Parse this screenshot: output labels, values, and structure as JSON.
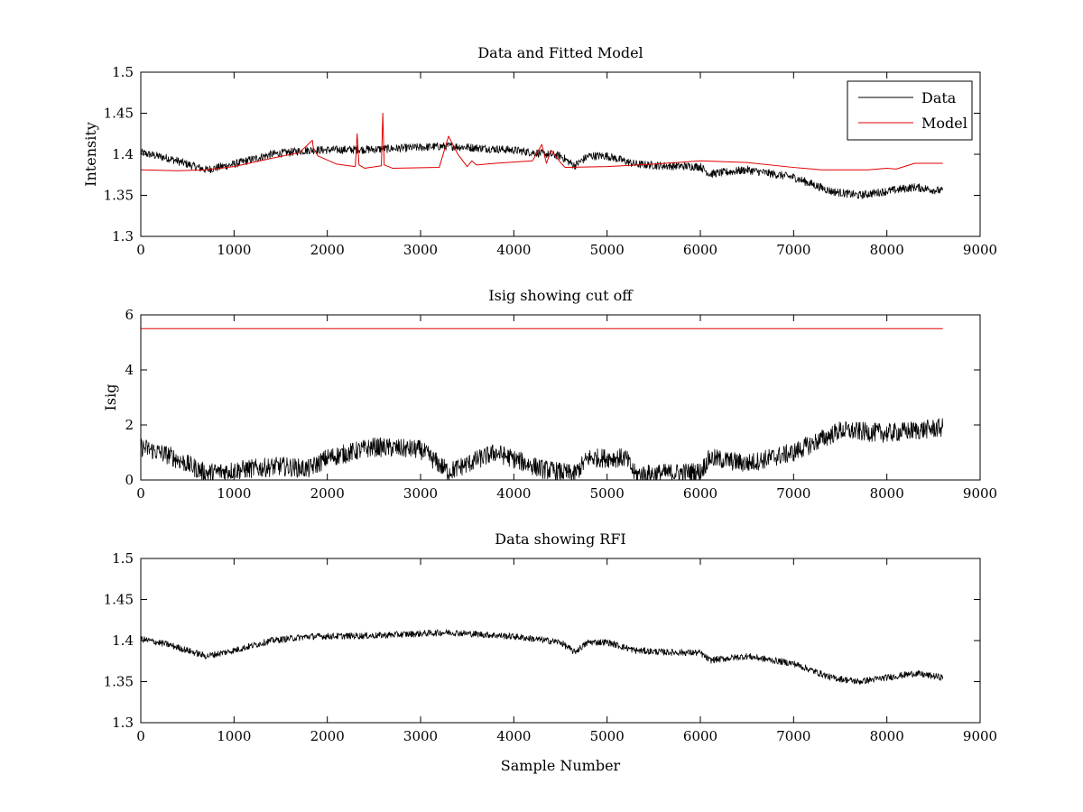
{
  "chart_data": [
    {
      "type": "line",
      "title": "Data and Fitted Model",
      "xlabel": "",
      "ylabel": "Intensity",
      "xlim": [
        0,
        9000
      ],
      "ylim": [
        1.3,
        1.5
      ],
      "xticks": [
        "0",
        "1000",
        "2000",
        "3000",
        "4000",
        "5000",
        "6000",
        "7000",
        "8000",
        "9000"
      ],
      "yticks": [
        "1.3",
        "1.35",
        "1.4",
        "1.45",
        "1.5"
      ],
      "legend": {
        "position": "top-right",
        "entries": [
          "Data",
          "Model"
        ]
      },
      "series": [
        {
          "name": "Data",
          "color": "#000000",
          "noise": 0.005,
          "x": [
            0,
            300,
            700,
            1000,
            1400,
            1800,
            2500,
            3300,
            4000,
            4500,
            4650,
            4800,
            5000,
            5300,
            5600,
            6000,
            6100,
            6500,
            7000,
            7400,
            7700,
            8000,
            8300,
            8600
          ],
          "y": [
            1.402,
            1.395,
            1.381,
            1.388,
            1.4,
            1.405,
            1.406,
            1.41,
            1.405,
            1.398,
            1.386,
            1.398,
            1.398,
            1.388,
            1.386,
            1.385,
            1.376,
            1.381,
            1.372,
            1.355,
            1.35,
            1.355,
            1.36,
            1.355
          ]
        },
        {
          "name": "Model",
          "color": "#e00000",
          "noise": 0,
          "x": [
            0,
            400,
            700,
            1000,
            1400,
            1700,
            1840,
            1850,
            1900,
            2100,
            2300,
            2320,
            2340,
            2400,
            2580,
            2595,
            2610,
            2700,
            3200,
            3300,
            3400,
            3500,
            3550,
            3600,
            3800,
            4200,
            4300,
            4350,
            4400,
            4500,
            4550,
            5000,
            5500,
            6000,
            6500,
            7000,
            7300,
            7800,
            8000,
            8100,
            8300,
            8600
          ],
          "y": [
            1.381,
            1.38,
            1.381,
            1.385,
            1.395,
            1.402,
            1.417,
            1.408,
            1.398,
            1.388,
            1.385,
            1.425,
            1.387,
            1.383,
            1.386,
            1.45,
            1.387,
            1.383,
            1.384,
            1.422,
            1.4,
            1.385,
            1.392,
            1.387,
            1.389,
            1.392,
            1.412,
            1.389,
            1.405,
            1.39,
            1.384,
            1.385,
            1.388,
            1.392,
            1.39,
            1.384,
            1.381,
            1.381,
            1.383,
            1.382,
            1.389,
            1.389
          ]
        }
      ]
    },
    {
      "type": "line",
      "title": "Isig showing cut off",
      "xlabel": "",
      "ylabel": "Isig",
      "xlim": [
        0,
        9000
      ],
      "ylim": [
        0,
        6
      ],
      "xticks": [
        "0",
        "1000",
        "2000",
        "3000",
        "4000",
        "5000",
        "6000",
        "7000",
        "8000",
        "9000"
      ],
      "yticks": [
        "0",
        "2",
        "4",
        "6"
      ],
      "series": [
        {
          "name": "",
          "color": "#000000",
          "noise": 0.35,
          "x": [
            0,
            300,
            700,
            1000,
            1500,
            1800,
            2000,
            2500,
            3000,
            3300,
            3800,
            4300,
            4650,
            4800,
            5200,
            5300,
            6000,
            6100,
            6500,
            7000,
            7500,
            8000,
            8600
          ],
          "y": [
            1.2,
            0.9,
            0.25,
            0.35,
            0.5,
            0.4,
            0.8,
            1.2,
            1.1,
            0.3,
            1.0,
            0.4,
            0.2,
            0.8,
            0.8,
            0.2,
            0.3,
            0.8,
            0.6,
            1.0,
            1.8,
            1.7,
            1.9
          ]
        },
        {
          "name": "",
          "color": "#e00000",
          "noise": 0,
          "x": [
            0,
            8600
          ],
          "y": [
            5.5,
            5.5
          ]
        }
      ]
    },
    {
      "type": "line",
      "title": "Data showing RFI",
      "xlabel": "Sample Number",
      "ylabel": "",
      "xlim": [
        0,
        9000
      ],
      "ylim": [
        1.3,
        1.5
      ],
      "xticks": [
        "0",
        "1000",
        "2000",
        "3000",
        "4000",
        "5000",
        "6000",
        "7000",
        "8000",
        "9000"
      ],
      "yticks": [
        "1.3",
        "1.35",
        "1.4",
        "1.45",
        "1.5"
      ],
      "series": [
        {
          "name": "",
          "color": "#000000",
          "noise": 0.004,
          "x": [
            0,
            300,
            700,
            1000,
            1400,
            1800,
            2500,
            3300,
            4000,
            4500,
            4650,
            4800,
            5000,
            5300,
            5600,
            6000,
            6100,
            6500,
            7000,
            7400,
            7700,
            8000,
            8300,
            8600
          ],
          "y": [
            1.402,
            1.395,
            1.381,
            1.388,
            1.4,
            1.405,
            1.406,
            1.41,
            1.405,
            1.398,
            1.386,
            1.398,
            1.398,
            1.388,
            1.386,
            1.385,
            1.376,
            1.381,
            1.372,
            1.355,
            1.35,
            1.355,
            1.36,
            1.355
          ]
        }
      ]
    }
  ]
}
